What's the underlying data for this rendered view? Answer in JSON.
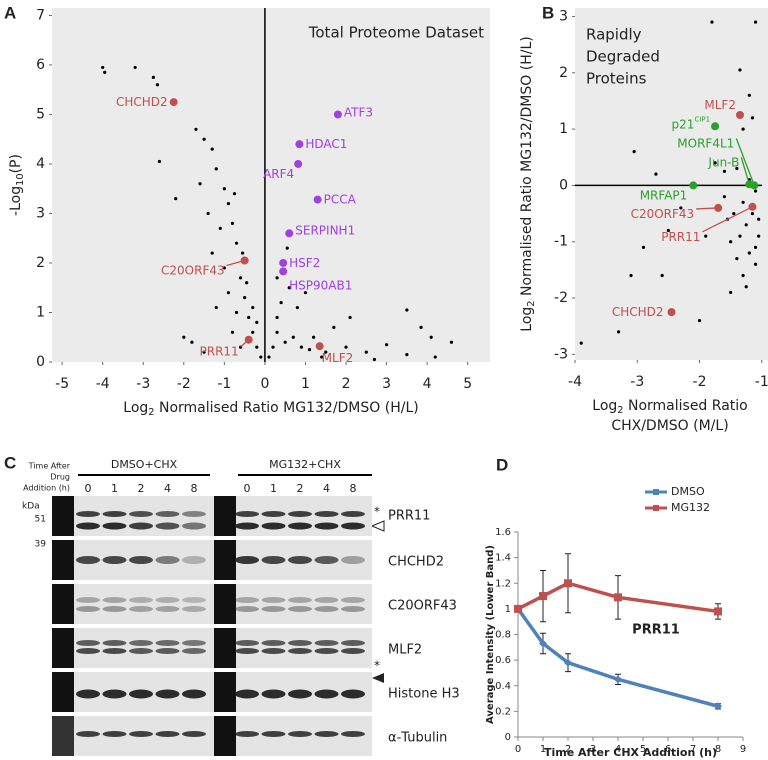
{
  "panel_labels": [
    "A",
    "B",
    "C",
    "D"
  ],
  "chart_data": [
    {
      "type": "scatter",
      "annotation": [
        "Total Proteome Dataset"
      ],
      "x_label_parts": [
        "Log",
        "2",
        " Normalised Ratio MG132/DMSO (H/L)"
      ],
      "x_label_line2": null,
      "y_label_parts": [
        "-Log",
        "10",
        "(P)"
      ],
      "xlim": [
        -5.25,
        5.55
      ],
      "ylim": [
        0,
        7.15
      ],
      "xticks": [
        -5,
        -4,
        -3,
        -2,
        -1,
        0,
        1,
        2,
        3,
        4,
        5
      ],
      "yticks": [
        0,
        1,
        2,
        3,
        4,
        5,
        6,
        7
      ],
      "zero_line": "x",
      "background": "#ebebeb",
      "points": {
        "color": "#000000",
        "x": [
          -4.0,
          -3.95,
          -3.2,
          -2.75,
          -2.65,
          -2.6,
          -2.2,
          -1.7,
          -1.5,
          -1.3,
          -1.2,
          -1.6,
          -1.0,
          -1.4,
          -0.9,
          -1.1,
          -0.8,
          -1.3,
          -0.7,
          -1.0,
          -0.6,
          -0.9,
          -0.5,
          -1.2,
          -0.7,
          -0.4,
          -0.8,
          -0.3,
          -0.6,
          -0.2,
          -0.1,
          0.1,
          0.2,
          0.3,
          0.5,
          0.7,
          0.9,
          1.1,
          1.5,
          2.0,
          2.5,
          3.0,
          3.5,
          3.85,
          3.5,
          4.1,
          4.6,
          4.2,
          1.7,
          2.1,
          1.2,
          0.4,
          0.6,
          0.3,
          0.8,
          1.0,
          -0.3,
          -0.45,
          -0.2,
          -2.0,
          -1.8,
          -1.5,
          0.55,
          0.3,
          -0.55,
          -0.75,
          1.4,
          2.7
        ],
        "y": [
          5.95,
          5.85,
          5.95,
          5.75,
          5.6,
          4.05,
          3.3,
          4.7,
          4.5,
          4.3,
          3.9,
          3.6,
          3.5,
          3.0,
          3.2,
          2.7,
          2.8,
          2.2,
          2.4,
          1.9,
          1.7,
          1.4,
          1.3,
          1.1,
          1.0,
          0.9,
          0.6,
          0.6,
          0.3,
          0.3,
          0.1,
          0.1,
          0.3,
          0.6,
          0.4,
          0.5,
          0.3,
          0.25,
          0.2,
          0.3,
          0.2,
          0.35,
          0.15,
          0.7,
          1.05,
          0.5,
          0.4,
          0.1,
          0.7,
          0.9,
          0.5,
          1.2,
          1.5,
          0.9,
          1.1,
          1.4,
          1.1,
          1.6,
          0.8,
          0.5,
          0.4,
          0.2,
          2.3,
          1.7,
          2.2,
          3.4,
          0.1,
          0.05
        ]
      },
      "highlights": [
        {
          "label": "ATF3",
          "x": 1.8,
          "y": 5.0,
          "color": "#a040e0"
        },
        {
          "label": "HDAC1",
          "x": 0.85,
          "y": 4.4,
          "color": "#a040e0"
        },
        {
          "label": "ARF4",
          "x": 0.82,
          "y": 4.0,
          "color": "#a040e0"
        },
        {
          "label": "PCCA",
          "x": 1.3,
          "y": 3.28,
          "color": "#a040e0"
        },
        {
          "label": "SERPINH1",
          "x": 0.6,
          "y": 2.6,
          "color": "#a040e0"
        },
        {
          "label": "HSF2",
          "x": 0.45,
          "y": 2.0,
          "color": "#a040e0"
        },
        {
          "label": "HSP90AB1",
          "x": 0.45,
          "y": 1.83,
          "color": "#a040e0"
        },
        {
          "label": "CHCHD2",
          "x": -2.25,
          "y": 5.25,
          "color": "#c0504d"
        },
        {
          "label": "C20ORF43",
          "x": -0.5,
          "y": 2.05,
          "color": "#c0504d"
        },
        {
          "label": "PRR11",
          "x": -0.4,
          "y": 0.45,
          "color": "#c0504d"
        },
        {
          "label": "MLF2",
          "x": 1.35,
          "y": 0.32,
          "color": "#c0504d"
        }
      ]
    },
    {
      "type": "scatter",
      "annotation": [
        "Rapidly",
        "Degraded",
        "Proteins"
      ],
      "x_label_parts": [
        "Log",
        "2",
        " Normalised Ratio"
      ],
      "x_label_line2": "CHX/DMSO (M/L)",
      "y_label_parts": [
        "Log",
        "2",
        " Normalised Ratio MG132/DMSO (H/L)"
      ],
      "xlim": [
        -4,
        -0.9
      ],
      "ylim": [
        -3.1,
        3.15
      ],
      "xticks": [
        -4,
        -3,
        -2,
        -1
      ],
      "yticks": [
        -3,
        -2,
        -1,
        0,
        1,
        2,
        3
      ],
      "zero_line": "y",
      "background": "#ebebeb",
      "points": {
        "color": "#000000",
        "x": [
          -3.9,
          -3.3,
          -3.05,
          -3.1,
          -2.9,
          -2.5,
          -2.3,
          -2.0,
          -1.8,
          -1.75,
          -1.6,
          -1.55,
          -1.5,
          -1.45,
          -1.4,
          -1.35,
          -1.3,
          -1.3,
          -1.25,
          -1.2,
          -1.15,
          -1.1,
          -1.1,
          -1.05,
          -1.05,
          -1.35,
          -1.2,
          -1.3,
          -1.15,
          -1.7,
          -1.9,
          -2.6,
          -2.7,
          -1.4,
          -1.6,
          -1.1,
          -1.2,
          -1.5,
          -1.25,
          -1.1
        ],
        "y": [
          -2.8,
          -2.6,
          0.6,
          -1.6,
          -1.1,
          -0.8,
          -0.4,
          -2.4,
          2.9,
          0.4,
          -0.2,
          -0.6,
          -1.0,
          -0.5,
          -1.3,
          -0.9,
          -0.3,
          -1.6,
          -0.7,
          -1.2,
          -0.5,
          -0.1,
          -1.4,
          -0.6,
          -0.9,
          2.05,
          1.6,
          1.0,
          1.2,
          -0.4,
          -0.9,
          -1.6,
          0.2,
          0.3,
          0.25,
          2.9,
          0.1,
          -1.9,
          -1.8,
          -1.1
        ]
      },
      "highlights": [
        {
          "label": "p21",
          "label_superscript": "CIP1",
          "x": -1.75,
          "y": 1.05,
          "color": "#2ca02c"
        },
        {
          "label": "MORF4L1",
          "x": -1.12,
          "y": 0.0,
          "color": "#2ca02c"
        },
        {
          "label": "Jun-B",
          "x": -1.2,
          "y": 0.02,
          "color": "#2ca02c"
        },
        {
          "label": "MRFAP1",
          "x": -2.1,
          "y": 0.0,
          "color": "#2ca02c"
        },
        {
          "label": "MLF2",
          "x": -1.35,
          "y": 1.25,
          "color": "#c0504d"
        },
        {
          "label": "C20ORF43",
          "x": -1.7,
          "y": -0.4,
          "color": "#c0504d"
        },
        {
          "label": "PRR11",
          "x": -1.15,
          "y": -0.38,
          "color": "#c0504d"
        },
        {
          "label": "CHCHD2",
          "x": -2.45,
          "y": -2.25,
          "color": "#c0504d"
        }
      ]
    },
    {
      "type": "line",
      "annotation": "PRR11",
      "x_label": "Time After CHX Addition (h)",
      "y_label": "Average Intensity (Lower Band)",
      "x": [
        0,
        1,
        2,
        4,
        8
      ],
      "xlim": [
        0,
        9
      ],
      "ylim": [
        0,
        1.6
      ],
      "xticks": [
        0,
        1,
        2,
        3,
        4,
        5,
        6,
        7,
        8,
        9
      ],
      "yticks": [
        0,
        0.2,
        0.4,
        0.6,
        0.8,
        1,
        1.2,
        1.4,
        1.6
      ],
      "legend": "top-right",
      "series": [
        {
          "name": "DMSO",
          "color": "#4f81bd",
          "marker": "diamond",
          "values": [
            1,
            0.73,
            0.58,
            0.45,
            0.24
          ],
          "errors": [
            0,
            0.08,
            0.07,
            0.04,
            0.02
          ]
        },
        {
          "name": "MG132",
          "color": "#c0504d",
          "marker": "square",
          "values": [
            1,
            1.1,
            1.2,
            1.09,
            0.98
          ],
          "errors": [
            0,
            0.2,
            0.23,
            0.17,
            0.06
          ]
        }
      ]
    }
  ],
  "blot": {
    "time_label": [
      "Time After",
      "Drug",
      "Addition (h)"
    ],
    "groups": [
      "DMSO+CHX",
      "MG132+CHX"
    ],
    "lanes": [
      "0",
      "1",
      "2",
      "4",
      "8",
      "0",
      "1",
      "2",
      "4",
      "8"
    ],
    "kda_label": "kDa",
    "markers": [
      "51",
      "39"
    ],
    "rows": [
      "PRR11",
      "CHCHD2",
      "C20ORF43",
      "MLF2",
      "Histone H3",
      "α-Tubulin"
    ],
    "asterisks": [
      "*",
      "*"
    ]
  }
}
